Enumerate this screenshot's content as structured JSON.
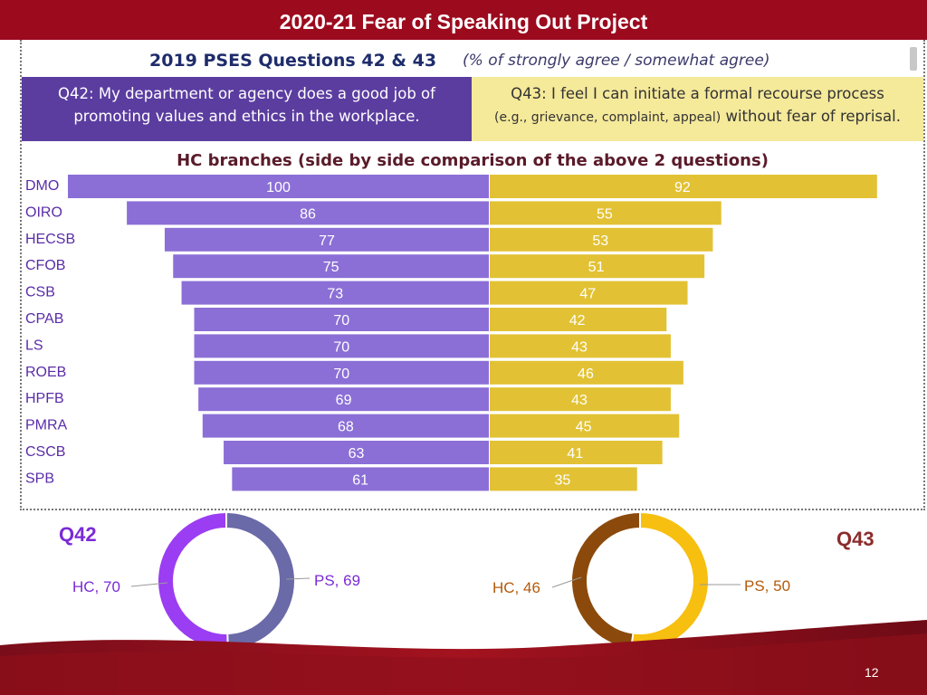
{
  "slide_title": "2020-21 Fear of Speaking Out Project",
  "header": {
    "main": "2019 PSES Questions 42 & 43",
    "sub": "(% of strongly agree / somewhat agree)"
  },
  "q42_box": {
    "line1": "Q42: My department or agency does a good job of",
    "line2": "promoting values and ethics in the workplace."
  },
  "q43_box": {
    "line1": "Q43: I feel I can initiate a formal recourse process",
    "line2_small": "(e.g., grievance, complaint, appeal)",
    "line2_rest": " without fear of reprisal."
  },
  "chart_data": [
    {
      "type": "bar",
      "title": "HC branches (side by side comparison of the above 2 questions)",
      "categories": [
        "DMO",
        "OIRO",
        "HECSB",
        "CFOB",
        "CSB",
        "CPAB",
        "LS",
        "ROEB",
        "HPFB",
        "PMRA",
        "CSCB",
        "SPB"
      ],
      "series": [
        {
          "values": [
            100,
            86,
            77,
            75,
            73,
            70,
            70,
            70,
            69,
            68,
            63,
            61
          ],
          "color": "#8b6fd6"
        },
        {
          "values": [
            92,
            55,
            53,
            51,
            47,
            42,
            43,
            46,
            43,
            45,
            41,
            35
          ],
          "color": "#e2c234"
        }
      ]
    },
    {
      "type": "pie",
      "title": "Q42",
      "slices": [
        {
          "label": "HC",
          "value": 70,
          "color": "#9b3df2"
        },
        {
          "label": "PS",
          "value": 69,
          "color": "#6a6aa8"
        }
      ]
    },
    {
      "type": "pie",
      "title": "Q43",
      "slices": [
        {
          "label": "HC",
          "value": 46,
          "color": "#8b4a0b"
        },
        {
          "label": "PS",
          "value": 50,
          "color": "#f7bf10"
        }
      ]
    }
  ],
  "donut_labels": {
    "q42_hc": "HC, 70",
    "q42_ps": "PS, 69",
    "q43_hc": "HC, 46",
    "q43_ps": "PS, 50"
  },
  "page_number": "12",
  "colors": {
    "title_bar": "#9c0a1e",
    "q42_box": "#5b3da0",
    "q43_box": "#f5e99a"
  }
}
